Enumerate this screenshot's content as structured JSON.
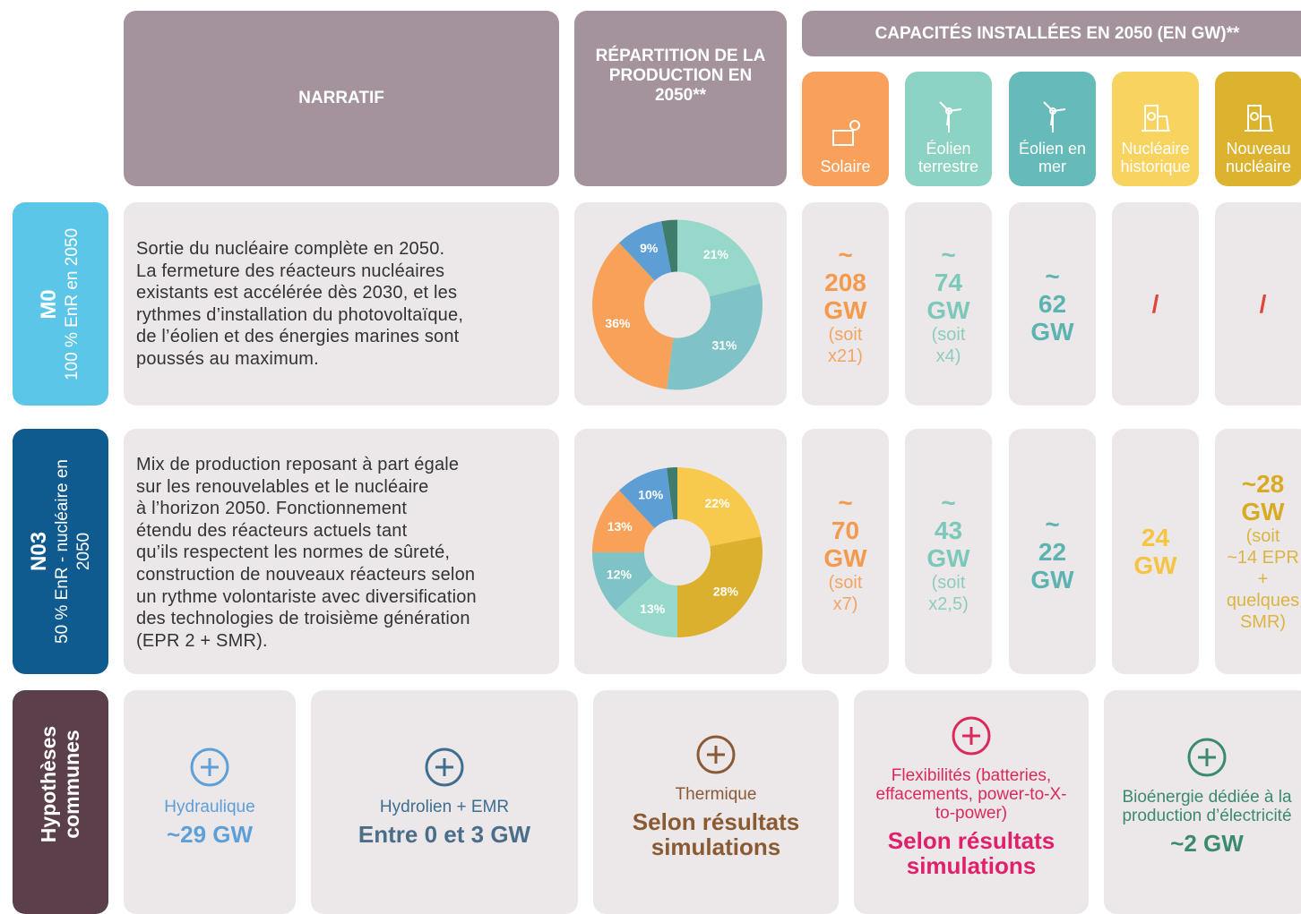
{
  "header": {
    "narratif": "NARRATIF",
    "repartition": "RÉPARTITION DE LA PRODUCTION EN 2050**",
    "capacites": "CAPACITÉS INSTALLÉES EN 2050 (EN GW)**"
  },
  "technologies": [
    {
      "label": "Solaire",
      "color": "#f9a05a"
    },
    {
      "label": "Éolien terrestre",
      "color": "#8dd3c4"
    },
    {
      "label": "Éolien en mer",
      "color": "#66bab7"
    },
    {
      "label": "Nucléaire historique",
      "color": "#f8d35f"
    },
    {
      "label": "Nouveau nucléaire",
      "color": "#dcb32e"
    }
  ],
  "scenarios": [
    {
      "code": "M0",
      "subtitle": "100 % EnR en 2050",
      "color": "#5cc6e8",
      "narrative": [
        "Sortie du nucléaire complète en 2050.",
        "La fermeture des réacteurs nucléaires",
        "existants est accélérée dès 2030, et les",
        "rythmes d’installation du photovoltaïque,",
        "de l’éolien et des énergies marines sont",
        "poussés au maximum."
      ],
      "chart": {
        "type": "pie",
        "values": [
          21,
          31,
          36,
          9,
          3
        ],
        "value_labels": [
          "21%",
          "31%",
          "36%",
          "9%",
          null
        ],
        "colors": [
          "#96d8ca",
          "#7fc3c6",
          "#f8a259",
          "#5d9fd4",
          "#3f7c6c"
        ]
      },
      "capacities": [
        {
          "lines": [
            "~",
            "208",
            "GW"
          ],
          "note": [
            "(soit",
            "x21)"
          ],
          "color": "#f39a4c"
        },
        {
          "lines": [
            "~",
            "74",
            "GW"
          ],
          "note": [
            "(soit",
            "x4)"
          ],
          "color": "#7cc8b9"
        },
        {
          "lines": [
            "~",
            "62",
            "GW"
          ],
          "color": "#5cb3b0"
        },
        {
          "lines": [
            "/"
          ],
          "color": "#e0453a"
        },
        {
          "lines": [
            "/"
          ],
          "color": "#e0453a"
        }
      ]
    },
    {
      "code": "N03",
      "subtitle": "50 % EnR - nucléaire en 2050",
      "color": "#0f5a8e",
      "narrative": [
        "Mix de production reposant à part égale",
        "sur les renouvelables et le nucléaire",
        "à l’horizon 2050. Fonctionnement",
        "étendu des réacteurs actuels tant",
        "qu’ils respectent les normes de sûreté,",
        "construction de nouveaux réacteurs selon",
        "un rythme volontariste avec diversification",
        "des technologies de troisième génération",
        "(EPR 2 + SMR)."
      ],
      "chart": {
        "type": "pie",
        "values": [
          22,
          28,
          13,
          12,
          13,
          10,
          2
        ],
        "value_labels": [
          "22%",
          "28%",
          "13%",
          "12%",
          "13%",
          "10%",
          null
        ],
        "colors": [
          "#f7c94c",
          "#dcb02f",
          "#96d8ca",
          "#7fc3c6",
          "#f8a259",
          "#5d9fd4",
          "#3f7c6c"
        ]
      },
      "capacities": [
        {
          "lines": [
            "~",
            "70",
            "GW"
          ],
          "note": [
            "(soit",
            "x7)"
          ],
          "color": "#f39a4c"
        },
        {
          "lines": [
            "~",
            "43",
            "GW"
          ],
          "note": [
            "(soit",
            "x2,5)"
          ],
          "color": "#7cc8b9"
        },
        {
          "lines": [
            "~",
            "22",
            "GW"
          ],
          "color": "#5cb3b0"
        },
        {
          "lines": [
            "24",
            "GW"
          ],
          "color": "#f5c443"
        },
        {
          "lines": [
            "~28",
            "GW"
          ],
          "note": [
            "(soit",
            "~14 EPR",
            "+",
            "quelques",
            "SMR)"
          ],
          "color": "#d9ab25"
        }
      ]
    }
  ],
  "common": {
    "title": "Hypothèses communes",
    "color": "#5b3f4a",
    "items": [
      {
        "label": "Hydraulique",
        "value": "~29 GW",
        "color": "#5d9fd6",
        "valueColor": "#5d9fd6"
      },
      {
        "label": "Hydrolien + EMR",
        "value": "Entre 0 et 3 GW",
        "color": "#3e6e8e",
        "valueColor": "#4a6e8a"
      },
      {
        "label": "Thermique",
        "value": "Selon résultats simulations",
        "color": "#8a5a36",
        "valueColor": "#8a5a33"
      },
      {
        "label": "Flexibilités (batteries, effacements, power-to-X-to-power)",
        "value": "Selon résultats simulations",
        "color": "#d92a5c",
        "valueColor": "#e0206a"
      },
      {
        "label": "Bioénergie dédiée à la production d’électricité",
        "value": "~2 GW",
        "color": "#3c8a6c",
        "valueColor": "#3c8a6c"
      }
    ]
  }
}
